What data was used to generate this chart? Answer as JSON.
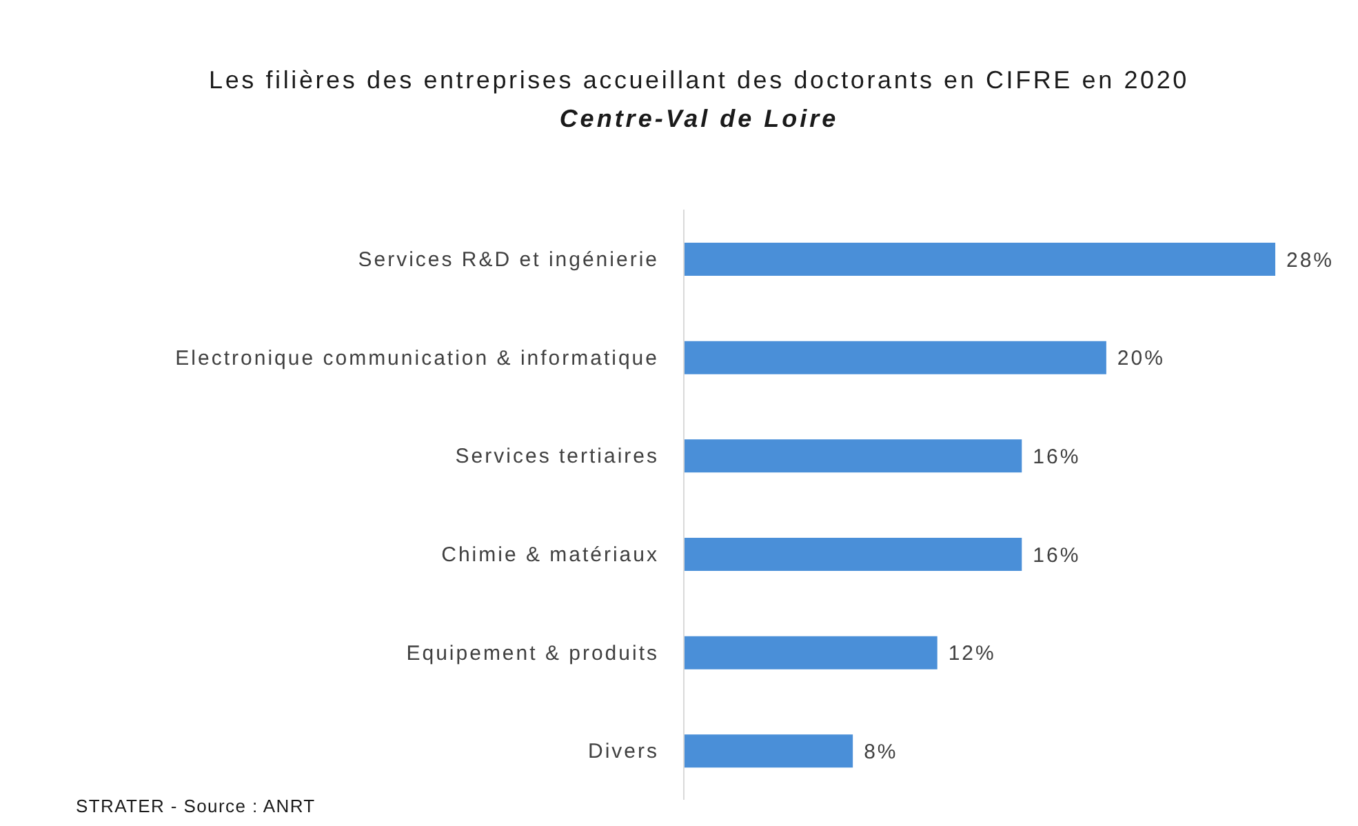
{
  "chart_data": {
    "type": "bar",
    "orientation": "horizontal",
    "title": "Les filières des entreprises accueillant des doctorants en CIFRE en 2020",
    "subtitle": "Centre-Val de Loire",
    "annotations": [
      "STRATER - Source : ANRT"
    ],
    "categories": [
      "Services R&D et ingénierie",
      "Electronique communication & informatique",
      "Services tertiaires",
      "Chimie & matériaux",
      "Equipement & produits",
      "Divers"
    ],
    "values": [
      28,
      20,
      16,
      16,
      12,
      8
    ],
    "value_labels": [
      "28%",
      "20%",
      "16%",
      "16%",
      "12%",
      "8%"
    ],
    "color": "#4a8fd8",
    "tick_labels": "y"
  }
}
